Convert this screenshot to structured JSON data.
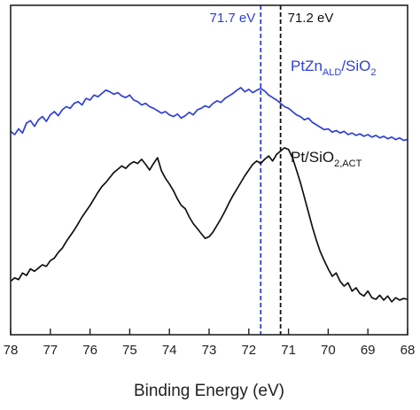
{
  "chart_data": {
    "type": "line",
    "xlabel": "Binding Energy (eV)",
    "ylabel": "",
    "xlim": [
      78,
      68
    ],
    "x_reversed": true,
    "x_ticks": [
      "78",
      "77",
      "76",
      "75",
      "74",
      "73",
      "72",
      "71",
      "70",
      "69",
      "68"
    ],
    "y_ticks": [],
    "grid": false,
    "colors": {
      "blue": "#2f3fd6",
      "black": "#111111",
      "axis": "#222222"
    },
    "reference_lines": [
      {
        "x": 71.7,
        "label": "71.7 eV",
        "color": "#2f3fd6",
        "style": "dashed"
      },
      {
        "x": 71.2,
        "label": "71.2 eV",
        "color": "#111111",
        "style": "dashed"
      }
    ],
    "series": [
      {
        "label_parts": [
          {
            "text": "PtZn",
            "sub": false
          },
          {
            "text": "ALD",
            "sub": true
          },
          {
            "text": "/SiO",
            "sub": false
          },
          {
            "text": "2",
            "sub": true
          }
        ],
        "color": "#2f3fd6",
        "x": [
          78.0,
          77.9,
          77.8,
          77.7,
          77.6,
          77.5,
          77.4,
          77.3,
          77.2,
          77.1,
          77.0,
          76.9,
          76.8,
          76.7,
          76.6,
          76.5,
          76.4,
          76.3,
          76.2,
          76.1,
          76.0,
          75.9,
          75.8,
          75.7,
          75.6,
          75.5,
          75.4,
          75.3,
          75.2,
          75.1,
          75.0,
          74.9,
          74.8,
          74.7,
          74.6,
          74.5,
          74.4,
          74.3,
          74.2,
          74.1,
          74.0,
          73.9,
          73.8,
          73.7,
          73.6,
          73.5,
          73.4,
          73.3,
          73.2,
          73.1,
          73.0,
          72.9,
          72.8,
          72.7,
          72.6,
          72.5,
          72.4,
          72.3,
          72.2,
          72.1,
          72.0,
          71.9,
          71.8,
          71.7,
          71.6,
          71.5,
          71.4,
          71.3,
          71.2,
          71.1,
          71.0,
          70.9,
          70.8,
          70.7,
          70.6,
          70.5,
          70.4,
          70.3,
          70.2,
          70.1,
          70.0,
          69.9,
          69.8,
          69.7,
          69.6,
          69.5,
          69.4,
          69.3,
          69.2,
          69.1,
          69.0,
          68.9,
          68.8,
          68.7,
          68.6,
          68.5,
          68.4,
          68.3,
          68.2,
          68.1,
          68.0
        ],
        "y": [
          0.42,
          0.38,
          0.45,
          0.4,
          0.52,
          0.55,
          0.48,
          0.56,
          0.6,
          0.54,
          0.62,
          0.66,
          0.61,
          0.68,
          0.72,
          0.7,
          0.76,
          0.78,
          0.74,
          0.82,
          0.8,
          0.86,
          0.84,
          0.88,
          0.92,
          0.9,
          0.87,
          0.89,
          0.85,
          0.83,
          0.86,
          0.8,
          0.78,
          0.74,
          0.76,
          0.72,
          0.7,
          0.67,
          0.64,
          0.66,
          0.62,
          0.6,
          0.63,
          0.58,
          0.61,
          0.65,
          0.62,
          0.68,
          0.7,
          0.73,
          0.71,
          0.76,
          0.79,
          0.77,
          0.82,
          0.85,
          0.88,
          0.92,
          0.95,
          0.9,
          0.93,
          0.89,
          0.92,
          0.94,
          0.91,
          0.86,
          0.83,
          0.8,
          0.76,
          0.72,
          0.7,
          0.66,
          0.62,
          0.6,
          0.56,
          0.58,
          0.53,
          0.5,
          0.47,
          0.44,
          0.45,
          0.41,
          0.43,
          0.4,
          0.42,
          0.38,
          0.4,
          0.37,
          0.39,
          0.36,
          0.38,
          0.35,
          0.37,
          0.34,
          0.36,
          0.33,
          0.35,
          0.32,
          0.34,
          0.31,
          0.32
        ]
      },
      {
        "label_parts": [
          {
            "text": "Pt/SiO",
            "sub": false
          },
          {
            "text": "2,ACT",
            "sub": true
          }
        ],
        "color": "#111111",
        "x": [
          78.0,
          77.9,
          77.8,
          77.7,
          77.6,
          77.5,
          77.4,
          77.3,
          77.2,
          77.1,
          77.0,
          76.9,
          76.8,
          76.7,
          76.6,
          76.5,
          76.4,
          76.3,
          76.2,
          76.1,
          76.0,
          75.9,
          75.8,
          75.7,
          75.6,
          75.5,
          75.4,
          75.3,
          75.2,
          75.1,
          75.0,
          74.9,
          74.8,
          74.7,
          74.6,
          74.5,
          74.4,
          74.3,
          74.2,
          74.1,
          74.0,
          73.9,
          73.8,
          73.7,
          73.6,
          73.5,
          73.4,
          73.3,
          73.2,
          73.1,
          73.0,
          72.9,
          72.8,
          72.7,
          72.6,
          72.5,
          72.4,
          72.3,
          72.2,
          72.1,
          72.0,
          71.9,
          71.8,
          71.7,
          71.6,
          71.5,
          71.4,
          71.3,
          71.2,
          71.1,
          71.0,
          70.9,
          70.8,
          70.7,
          70.6,
          70.5,
          70.4,
          70.3,
          70.2,
          70.1,
          70.0,
          69.9,
          69.8,
          69.7,
          69.6,
          69.5,
          69.4,
          69.3,
          69.2,
          69.1,
          69.0,
          68.9,
          68.8,
          68.7,
          68.6,
          68.5,
          68.4,
          68.3,
          68.2,
          68.1,
          68.0
        ],
        "y": [
          -1.4,
          -1.36,
          -1.38,
          -1.3,
          -1.33,
          -1.25,
          -1.28,
          -1.24,
          -1.2,
          -1.22,
          -1.15,
          -1.12,
          -1.05,
          -1.0,
          -0.92,
          -0.85,
          -0.78,
          -0.7,
          -0.62,
          -0.55,
          -0.48,
          -0.4,
          -0.32,
          -0.25,
          -0.2,
          -0.14,
          -0.08,
          -0.04,
          0.0,
          -0.03,
          0.02,
          0.05,
          0.03,
          0.08,
          0.02,
          -0.05,
          0.03,
          0.1,
          -0.06,
          -0.15,
          -0.22,
          -0.3,
          -0.4,
          -0.48,
          -0.52,
          -0.62,
          -0.7,
          -0.76,
          -0.82,
          -0.88,
          -0.86,
          -0.8,
          -0.72,
          -0.64,
          -0.55,
          -0.45,
          -0.36,
          -0.28,
          -0.2,
          -0.12,
          -0.05,
          0.02,
          0.06,
          0.03,
          0.08,
          0.12,
          0.06,
          0.14,
          0.18,
          0.22,
          0.2,
          0.1,
          -0.05,
          -0.2,
          -0.38,
          -0.56,
          -0.74,
          -0.9,
          -1.04,
          -1.15,
          -1.25,
          -1.34,
          -1.3,
          -1.4,
          -1.46,
          -1.42,
          -1.52,
          -1.48,
          -1.55,
          -1.58,
          -1.52,
          -1.6,
          -1.62,
          -1.57,
          -1.63,
          -1.58,
          -1.65,
          -1.6,
          -1.63,
          -1.61,
          -1.62
        ]
      }
    ]
  }
}
